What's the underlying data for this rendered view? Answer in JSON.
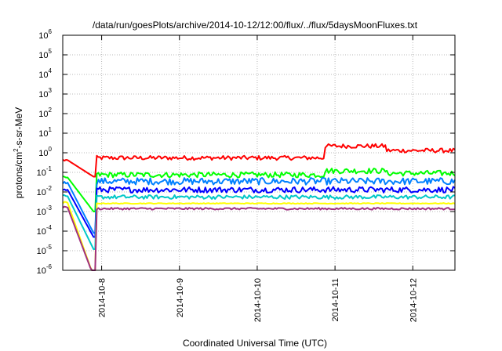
{
  "chart_data": {
    "type": "line",
    "title": "/data/run/goesPlots/archive/2014-10-12/12:00/flux/../flux/5daysMoonFluxes.txt",
    "xlabel": "Coordinated Universal Time (UTC)",
    "ylabel": "protons/cm²-s-sr-MeV",
    "ylabel_parts": [
      "protons/cm",
      "2",
      "-s-sr-MeV"
    ],
    "y_scale": "log",
    "ylim": [
      1e-06,
      1000000.0
    ],
    "y_ticks": [
      {
        "value": 1e-06,
        "base": "10",
        "exp": "-6"
      },
      {
        "value": 1e-05,
        "base": "10",
        "exp": "-5"
      },
      {
        "value": 0.0001,
        "base": "10",
        "exp": "-4"
      },
      {
        "value": 0.001,
        "base": "10",
        "exp": "-3"
      },
      {
        "value": 0.01,
        "base": "10",
        "exp": "-2"
      },
      {
        "value": 0.1,
        "base": "10",
        "exp": "-1"
      },
      {
        "value": 1,
        "base": "10",
        "exp": "0"
      },
      {
        "value": 10,
        "base": "10",
        "exp": "1"
      },
      {
        "value": 100,
        "base": "10",
        "exp": "2"
      },
      {
        "value": 1000,
        "base": "10",
        "exp": "3"
      },
      {
        "value": 10000,
        "base": "10",
        "exp": "4"
      },
      {
        "value": 100000,
        "base": "10",
        "exp": "5"
      },
      {
        "value": 1000000,
        "base": "10",
        "exp": "6"
      }
    ],
    "xlim": [
      "2014-10-07T12:00",
      "2014-10-12T13:00"
    ],
    "x_ticks": [
      {
        "value": "2014-10-08T00:00",
        "label": "2014-10-8"
      },
      {
        "value": "2014-10-09T00:00",
        "label": "2014-10-9"
      },
      {
        "value": "2014-10-10T00:00",
        "label": "2014-10-10"
      },
      {
        "value": "2014-10-11T00:00",
        "label": "2014-10-11"
      },
      {
        "value": "2014-10-12T00:00",
        "label": "2014-10-12"
      }
    ],
    "grid": true,
    "legend": "none",
    "series": [
      {
        "color": "#ff0000",
        "base": 0.55,
        "pre": 0.42,
        "dip_min": 0.06,
        "noise": 0.22,
        "shifts": [
          [
            "2014-10-10T21:00",
            2.2
          ],
          [
            "2014-10-11T16:00",
            1.3
          ]
        ]
      },
      {
        "color": "#00ff00",
        "base": 0.075,
        "pre": 0.055,
        "dip_min": 0.001,
        "noise": 0.28,
        "shifts": [
          [
            "2014-10-10T21:00",
            0.12
          ],
          [
            "2014-10-11T16:00",
            0.09
          ]
        ]
      },
      {
        "color": "#0080ff",
        "base": 0.035,
        "pre": 0.03,
        "dip_min": 8e-05,
        "noise": 0.35,
        "shifts": []
      },
      {
        "color": "#0000ff",
        "base": 0.013,
        "pre": 0.013,
        "dip_min": 5e-05,
        "noise": 0.3,
        "shifts": []
      },
      {
        "color": "#00c8c8",
        "base": 0.0055,
        "pre": 0.006,
        "dip_min": 1.2e-05,
        "noise": 0.2,
        "shifts": []
      },
      {
        "color": "#ffff00",
        "base": 0.0026,
        "pre": 0.0028,
        "dip_min": 5e-07,
        "noise": 0.04,
        "shifts": []
      },
      {
        "color": "#a03080",
        "base": 0.0014,
        "pre": 0.0016,
        "dip_min": 5e-07,
        "noise": 0.1,
        "shifts": []
      }
    ]
  }
}
